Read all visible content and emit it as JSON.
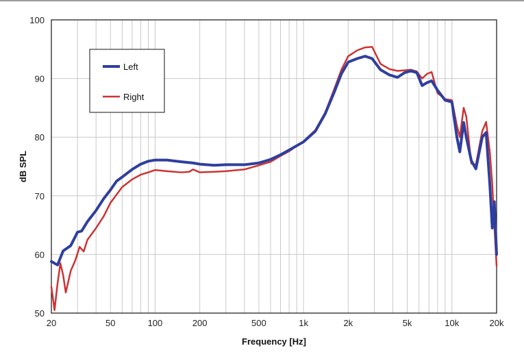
{
  "chart_data": {
    "type": "line",
    "title": "",
    "xlabel": "Frequency [Hz]",
    "ylabel": "dB SPL",
    "x_scale": "log",
    "xlim": [
      20,
      20000
    ],
    "ylim": [
      50,
      100
    ],
    "grid": true,
    "legend_position": "top-left",
    "x_tick_values": [
      20,
      50,
      100,
      200,
      500,
      1000,
      2000,
      5000,
      10000,
      20000
    ],
    "x_tick_labels": [
      "20",
      "50",
      "100",
      "200",
      "500",
      "1k",
      "2k",
      "5k",
      "10k",
      "20k"
    ],
    "y_ticks": [
      50,
      60,
      70,
      80,
      90,
      100
    ],
    "series": [
      {
        "name": "Left",
        "color": "#2f3f9e",
        "points": [
          [
            20,
            58.8
          ],
          [
            22,
            58.2
          ],
          [
            24,
            60.6
          ],
          [
            27,
            61.5
          ],
          [
            30,
            63.8
          ],
          [
            32,
            64.0
          ],
          [
            35,
            65.6
          ],
          [
            40,
            67.5
          ],
          [
            45,
            69.5
          ],
          [
            50,
            71.0
          ],
          [
            55,
            72.5
          ],
          [
            60,
            73.2
          ],
          [
            70,
            74.5
          ],
          [
            80,
            75.4
          ],
          [
            90,
            75.9
          ],
          [
            100,
            76.1
          ],
          [
            120,
            76.1
          ],
          [
            150,
            75.8
          ],
          [
            180,
            75.6
          ],
          [
            200,
            75.4
          ],
          [
            250,
            75.2
          ],
          [
            300,
            75.3
          ],
          [
            400,
            75.3
          ],
          [
            500,
            75.6
          ],
          [
            600,
            76.2
          ],
          [
            700,
            77.0
          ],
          [
            800,
            77.8
          ],
          [
            1000,
            79.2
          ],
          [
            1200,
            81.0
          ],
          [
            1400,
            84.0
          ],
          [
            1600,
            87.5
          ],
          [
            1800,
            90.8
          ],
          [
            2000,
            92.8
          ],
          [
            2300,
            93.4
          ],
          [
            2600,
            93.8
          ],
          [
            2900,
            93.4
          ],
          [
            3300,
            91.5
          ],
          [
            3800,
            90.6
          ],
          [
            4300,
            90.2
          ],
          [
            4800,
            91.0
          ],
          [
            5300,
            91.3
          ],
          [
            5800,
            91.0
          ],
          [
            6300,
            88.8
          ],
          [
            6800,
            89.3
          ],
          [
            7300,
            89.6
          ],
          [
            8000,
            88.0
          ],
          [
            9000,
            86.3
          ],
          [
            10000,
            86.0
          ],
          [
            10800,
            80.0
          ],
          [
            11300,
            77.5
          ],
          [
            12000,
            82.5
          ],
          [
            12500,
            80.0
          ],
          [
            13500,
            76.0
          ],
          [
            14500,
            74.6
          ],
          [
            16000,
            80.0
          ],
          [
            17000,
            80.8
          ],
          [
            18000,
            72.0
          ],
          [
            18700,
            64.5
          ],
          [
            19300,
            69.0
          ],
          [
            20000,
            60.0
          ]
        ]
      },
      {
        "name": "Right",
        "color": "#cc3333",
        "points": [
          [
            20,
            54.5
          ],
          [
            21,
            50.5
          ],
          [
            22,
            55.0
          ],
          [
            23,
            58.5
          ],
          [
            24,
            56.5
          ],
          [
            25,
            53.5
          ],
          [
            27,
            57.2
          ],
          [
            29,
            59.0
          ],
          [
            31,
            61.3
          ],
          [
            33,
            60.5
          ],
          [
            35,
            62.5
          ],
          [
            40,
            64.5
          ],
          [
            45,
            66.5
          ],
          [
            50,
            68.8
          ],
          [
            60,
            71.5
          ],
          [
            70,
            72.8
          ],
          [
            80,
            73.6
          ],
          [
            90,
            74.0
          ],
          [
            100,
            74.4
          ],
          [
            120,
            74.2
          ],
          [
            150,
            74.0
          ],
          [
            170,
            74.1
          ],
          [
            180,
            74.5
          ],
          [
            200,
            74.0
          ],
          [
            250,
            74.1
          ],
          [
            300,
            74.2
          ],
          [
            400,
            74.5
          ],
          [
            500,
            75.2
          ],
          [
            600,
            75.8
          ],
          [
            700,
            76.8
          ],
          [
            800,
            77.6
          ],
          [
            1000,
            79.3
          ],
          [
            1200,
            81.2
          ],
          [
            1400,
            84.2
          ],
          [
            1600,
            88.0
          ],
          [
            1800,
            91.5
          ],
          [
            2000,
            93.8
          ],
          [
            2300,
            94.8
          ],
          [
            2600,
            95.3
          ],
          [
            2900,
            95.4
          ],
          [
            3300,
            92.5
          ],
          [
            3800,
            91.6
          ],
          [
            4300,
            91.3
          ],
          [
            4800,
            91.4
          ],
          [
            5300,
            91.5
          ],
          [
            5800,
            91.2
          ],
          [
            6300,
            90.0
          ],
          [
            6800,
            90.8
          ],
          [
            7300,
            91.1
          ],
          [
            8000,
            87.5
          ],
          [
            9000,
            86.5
          ],
          [
            10000,
            86.3
          ],
          [
            10800,
            82.0
          ],
          [
            11300,
            80.0
          ],
          [
            12000,
            85.0
          ],
          [
            12500,
            83.5
          ],
          [
            13500,
            75.5
          ],
          [
            14500,
            75.3
          ],
          [
            16000,
            81.0
          ],
          [
            17000,
            82.6
          ],
          [
            18000,
            77.5
          ],
          [
            18700,
            72.0
          ],
          [
            19300,
            65.0
          ],
          [
            20000,
            58.0
          ]
        ]
      }
    ]
  }
}
